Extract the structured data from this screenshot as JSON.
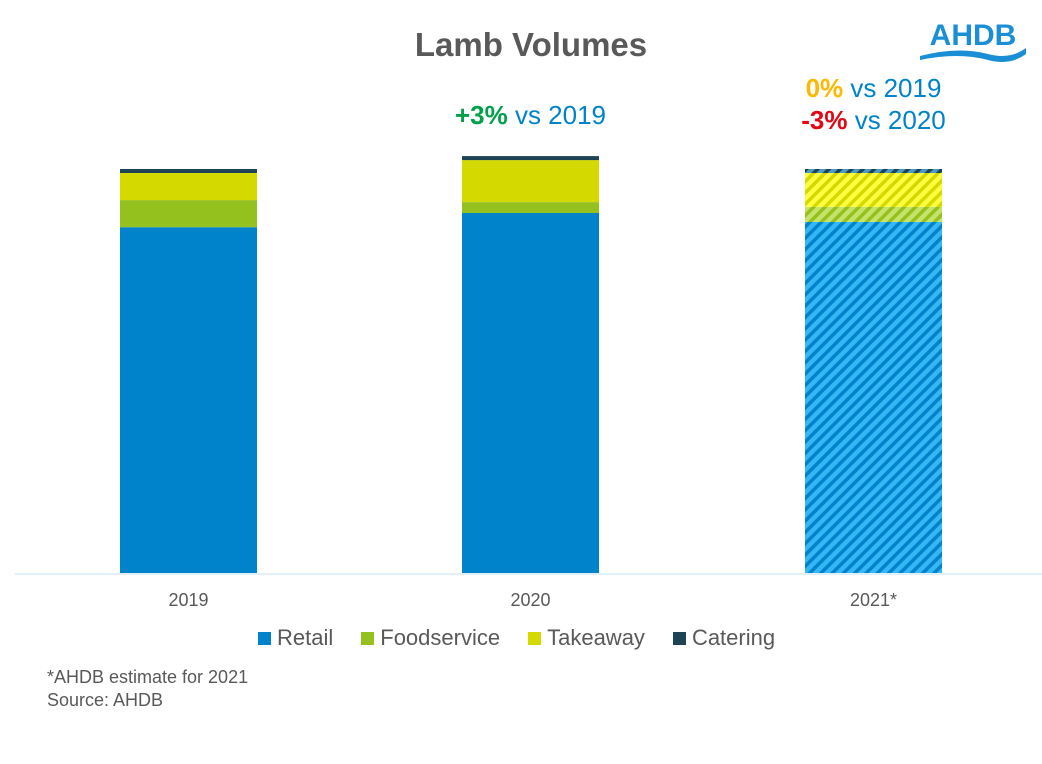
{
  "logo": {
    "text": "AHDB",
    "color": "#1B8FD6"
  },
  "chart_data": {
    "type": "bar",
    "stacked": true,
    "title": "Lamb Volumes",
    "xlabel": "",
    "ylabel": "",
    "value_units": "relative index (2019 total = 100), estimated from bar heights; no y-axis shown",
    "ylim": [
      0,
      105
    ],
    "grid": false,
    "categories": [
      "2019",
      "2020",
      "2021*"
    ],
    "estimated_categories": [
      "2021*"
    ],
    "series": [
      {
        "name": "Retail",
        "color": "#0083CA",
        "values": [
          85.6,
          89.1,
          86.9
        ]
      },
      {
        "name": "Foodservice",
        "color": "#95C11F",
        "values": [
          6.7,
          2.7,
          3.7
        ]
      },
      {
        "name": "Takeaway",
        "color": "#D4D900",
        "values": [
          6.7,
          10.4,
          8.4
        ]
      },
      {
        "name": "Catering",
        "color": "#1D4354",
        "values": [
          1.0,
          1.0,
          1.0
        ]
      }
    ],
    "legend_position": "bottom",
    "annotations": [
      {
        "category": "2020",
        "lines": [
          [
            {
              "text": "+3%",
              "color": "#00A14B",
              "bold": true
            },
            {
              "text": " vs 2019",
              "color": "#0083CA",
              "bold": false
            }
          ]
        ]
      },
      {
        "category": "2021*",
        "lines": [
          [
            {
              "text": "0%",
              "color": "#FFB800",
              "bold": true
            },
            {
              "text": " vs 2019",
              "color": "#0083CA",
              "bold": false
            }
          ],
          [
            {
              "text": "-3%",
              "color": "#E30613",
              "bold": true
            },
            {
              "text": " vs 2020",
              "color": "#0083CA",
              "bold": false
            }
          ]
        ]
      }
    ]
  },
  "footnotes": {
    "estimate_note": "*AHDB estimate for 2021",
    "source": "Source: AHDB"
  }
}
